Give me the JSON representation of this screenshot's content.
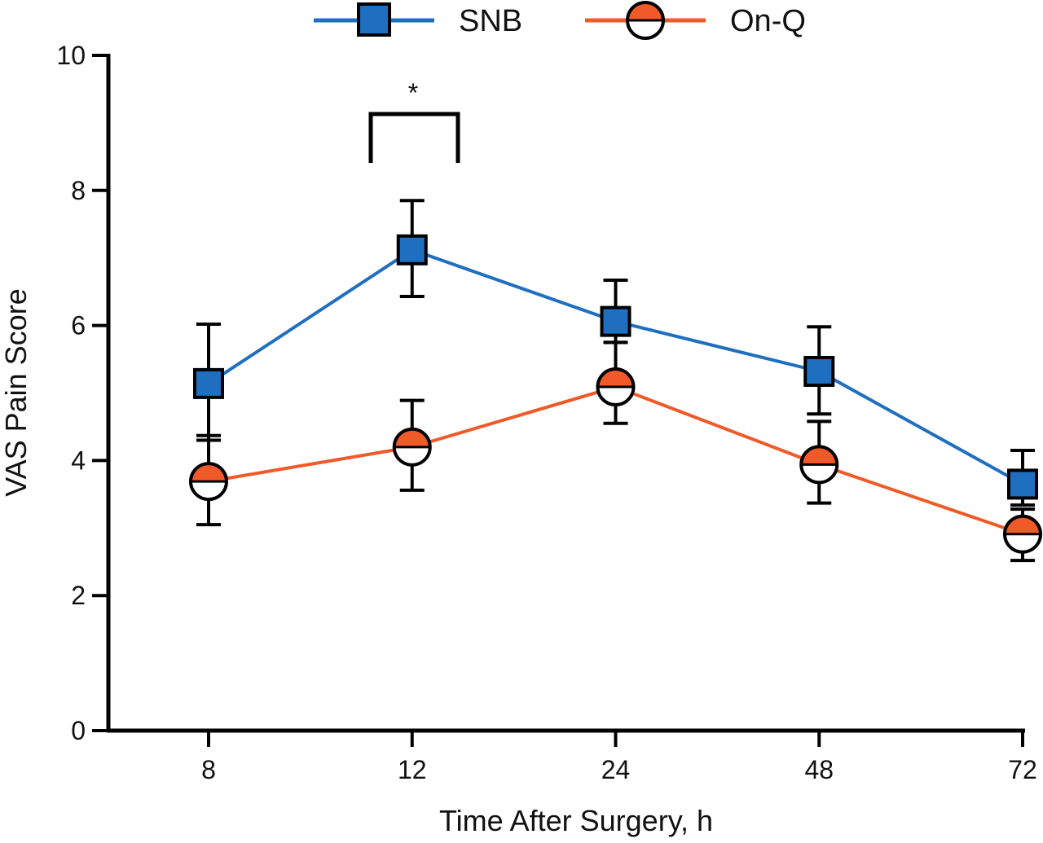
{
  "chart_data": {
    "type": "line",
    "title": "",
    "xlabel": "Time After Surgery, h",
    "ylabel": "VAS Pain Score",
    "categories": [
      "8",
      "12",
      "24",
      "48",
      "72"
    ],
    "ylim": [
      0,
      10
    ],
    "yticks": [
      "0",
      "2",
      "4",
      "6",
      "8",
      "10"
    ],
    "grid": false,
    "legend_placement": "top",
    "series": [
      {
        "name": "SNB",
        "color": "#1f6fc0",
        "marker": "square",
        "values": [
          5.14,
          7.12,
          6.06,
          5.32,
          3.65
        ],
        "err_upper": [
          6.02,
          7.85,
          6.67,
          5.98,
          4.15
        ],
        "err_lower": [
          4.3,
          6.43,
          5.75,
          4.69,
          3.34
        ]
      },
      {
        "name": "On-Q",
        "color": "#f05a28",
        "marker": "half-filled-circle",
        "values": [
          3.69,
          4.2,
          5.09,
          3.94,
          2.91
        ],
        "err_upper": [
          4.37,
          4.89,
          5.75,
          4.58,
          3.28
        ],
        "err_lower": [
          3.05,
          3.56,
          4.55,
          3.37,
          2.52
        ]
      }
    ],
    "annotations": [
      {
        "text": "*",
        "between_categories": [
          "8",
          "24"
        ],
        "at_category": "12"
      }
    ]
  }
}
